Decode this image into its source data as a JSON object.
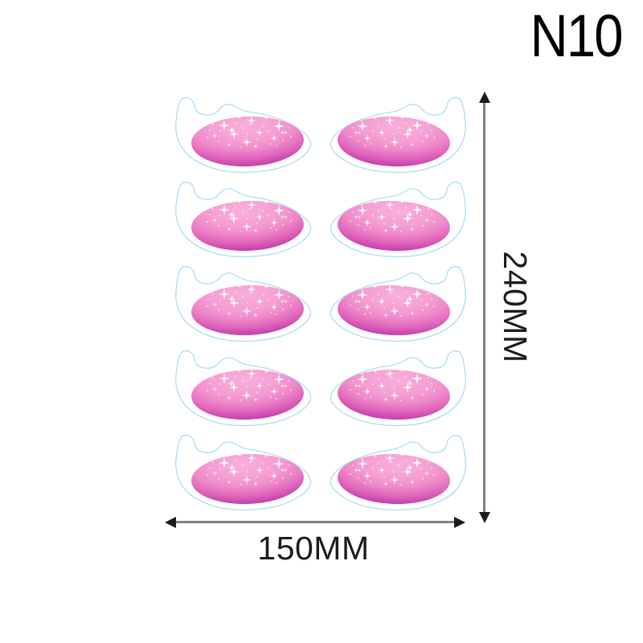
{
  "product": {
    "code": "N10"
  },
  "sheet": {
    "rows": 5,
    "columns": 2,
    "patch_total": 10,
    "item_name": "eye-gel-patch"
  },
  "dimensions": {
    "height": {
      "label": "240MM"
    },
    "width": {
      "label": "150MM"
    }
  },
  "colors": {
    "background": "#FFFFFF",
    "outline_blue": "#AEDCF4",
    "gel_light_pink": "#FAAFDA",
    "gel_mid_pink": "#EF88C9",
    "gel_dark_magenta": "#A82B99",
    "sparkle_white": "#FFFFFF",
    "dimension_line_gray": "#828282",
    "arrowhead_black": "#1B1B1B",
    "text_black": "#000000"
  },
  "icons": {
    "up_arrowhead": "arrow-up-icon",
    "down_arrowhead": "arrow-down-icon",
    "left_arrowhead": "arrow-left-icon",
    "right_arrowhead": "arrow-right-icon"
  }
}
